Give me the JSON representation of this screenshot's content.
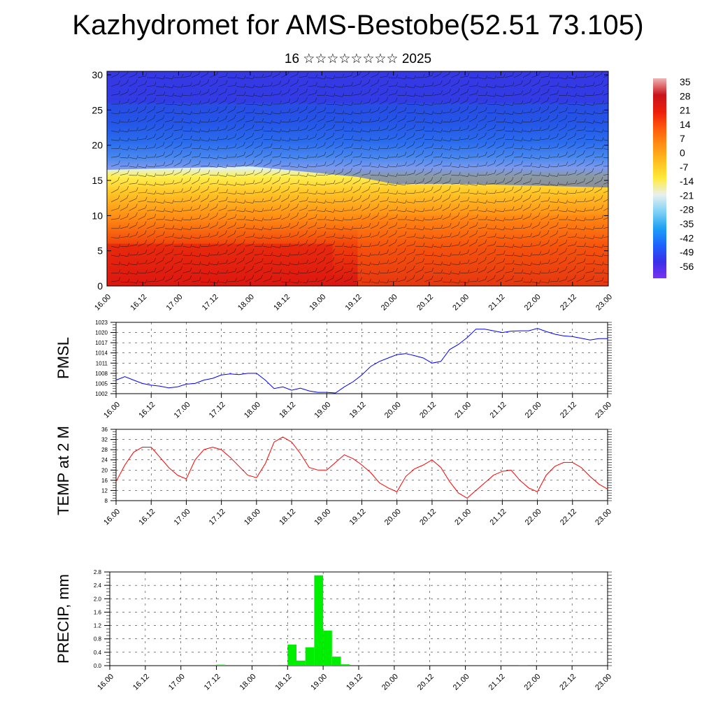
{
  "title": "Kazhydromet for AMS-Bestobe(52.51 73.105)",
  "subtitle": "16 ☆☆☆☆☆☆☆☆ 2025",
  "chart_data": [
    {
      "type": "heatmap",
      "title": "",
      "xlabel": "",
      "ylabel": "",
      "x_ticks": [
        "16.00",
        "16.12",
        "17.00",
        "17.12",
        "18.00",
        "18.12",
        "19.00",
        "19.12",
        "20.00",
        "20.12",
        "21.00",
        "21.12",
        "22.00",
        "22.12",
        "23.00"
      ],
      "y_ticks": [
        0,
        5,
        10,
        15,
        20,
        25,
        30
      ],
      "ylim": [
        0,
        30.5
      ],
      "colorbar_labels": [
        35,
        28,
        21,
        14,
        7,
        0,
        -7,
        -14,
        -21,
        -28,
        -35,
        -42,
        -49,
        -56
      ],
      "colorscale": [
        "#7a32f0",
        "#3a30e8",
        "#1e64ff",
        "#1ea0f5",
        "#7fd2f5",
        "#e8f0f0",
        "#ffea3c",
        "#ffc01e",
        "#ff9014",
        "#ff5a0a",
        "#ec1e0a",
        "#c8141a",
        "#f0b4b4"
      ],
      "overlay": "wind barbs",
      "tropopause_height_km": {
        "16.00": 16.5,
        "18.00": 17.0,
        "19.12": 15.5,
        "20.00": 14.5,
        "21.00": 14.5,
        "23.00": 14.0
      }
    },
    {
      "type": "line",
      "ylabel": "PMSL",
      "x_ticks": [
        "16.00",
        "16.12",
        "17.00",
        "17.12",
        "18.00",
        "18.12",
        "19.00",
        "19.12",
        "20.00",
        "20.12",
        "21.00",
        "21.12",
        "22.00",
        "22.12",
        "23.00"
      ],
      "y_ticks": [
        1002,
        1005,
        1008,
        1011,
        1014,
        1017,
        1020,
        1023
      ],
      "ylim": [
        1002,
        1023
      ],
      "grid": true,
      "series": [
        {
          "color": "#0000ff",
          "x_hours": [
            0,
            3,
            6,
            9,
            12,
            15,
            18,
            21,
            24,
            27,
            30,
            33,
            36,
            39,
            42,
            45,
            48,
            51,
            54,
            57,
            60,
            63,
            66,
            69,
            72,
            75,
            78,
            81,
            84,
            87,
            90,
            93,
            96,
            99,
            102,
            105,
            108,
            111,
            114,
            117,
            120,
            123,
            126,
            129,
            132,
            135,
            138,
            141,
            144,
            147,
            150,
            153,
            156,
            159,
            162,
            165,
            168
          ],
          "values": [
            1006,
            1007,
            1006,
            1005,
            1004.5,
            1004.2,
            1003.7,
            1004,
            1004.8,
            1005,
            1006,
            1006.5,
            1007.5,
            1007.8,
            1007.6,
            1008,
            1008,
            1006,
            1003.5,
            1004,
            1003,
            1003.6,
            1002.8,
            1002.4,
            1002.4,
            1002.2,
            1004,
            1005.5,
            1007.5,
            1010,
            1011.5,
            1012.5,
            1013.5,
            1013.8,
            1013.2,
            1012.5,
            1011,
            1011.5,
            1015,
            1016.5,
            1018.5,
            1021,
            1021,
            1020.5,
            1020,
            1020.4,
            1020.5,
            1020.5,
            1021.2,
            1020.3,
            1019.5,
            1019,
            1018.8,
            1018.3,
            1017.8,
            1018.2,
            1018.2
          ]
        }
      ]
    },
    {
      "type": "line",
      "ylabel": "TEMP at 2 M",
      "x_ticks": [
        "16.00",
        "16.12",
        "17.00",
        "17.12",
        "18.00",
        "18.12",
        "19.00",
        "19.12",
        "20.00",
        "20.12",
        "21.00",
        "21.12",
        "22.00",
        "22.12",
        "23.00"
      ],
      "y_ticks": [
        8,
        12,
        16,
        20,
        24,
        28,
        32,
        36
      ],
      "ylim": [
        8,
        36
      ],
      "grid": true,
      "series": [
        {
          "color": "#ff0000",
          "x_hours": [
            0,
            3,
            6,
            9,
            12,
            15,
            18,
            21,
            24,
            27,
            30,
            33,
            36,
            39,
            42,
            45,
            48,
            51,
            54,
            57,
            60,
            63,
            66,
            69,
            72,
            75,
            78,
            81,
            84,
            87,
            90,
            93,
            96,
            99,
            102,
            105,
            108,
            111,
            114,
            117,
            120,
            123,
            126,
            129,
            132,
            135,
            138,
            141,
            144,
            147,
            150,
            153,
            156,
            159,
            162,
            165,
            168
          ],
          "values": [
            15.5,
            22,
            27,
            29,
            29,
            25,
            21,
            18,
            16.5,
            24,
            28,
            29,
            28,
            25,
            21.5,
            18,
            17,
            22.5,
            31,
            33,
            31,
            26.5,
            21,
            20,
            20,
            23,
            26,
            24.5,
            22,
            19,
            15,
            13,
            11.5,
            17.5,
            20.5,
            22,
            24,
            21,
            15.5,
            11,
            9,
            12,
            15,
            18,
            19.5,
            20,
            16,
            13,
            11.5,
            18,
            21.5,
            23,
            23,
            21,
            17.5,
            14.5,
            12.5
          ]
        }
      ]
    },
    {
      "type": "bar",
      "ylabel": "PRECIP, mm",
      "x_ticks": [
        "16.00",
        "16.12",
        "17.00",
        "17.12",
        "18.00",
        "18.12",
        "19.00",
        "19.12",
        "20.00",
        "20.12",
        "21.00",
        "21.12",
        "22.00",
        "22.12",
        "23.00"
      ],
      "y_ticks": [
        "0.0",
        "0.4",
        "0.8",
        "1.2",
        "1.6",
        "2.0",
        "2.4",
        "2.8"
      ],
      "ylim": [
        0,
        2.8
      ],
      "bar_color": "#00ee00",
      "bar_width_hours": 3,
      "grid": true,
      "bars": {
        "x_hours": [
          36,
          54,
          60,
          63,
          66,
          69,
          72,
          75,
          78,
          84,
          138
        ],
        "values": [
          0.03,
          0.02,
          0.63,
          0.15,
          0.55,
          2.7,
          1.05,
          0.27,
          0.04,
          0.02,
          0.02
        ]
      }
    }
  ]
}
